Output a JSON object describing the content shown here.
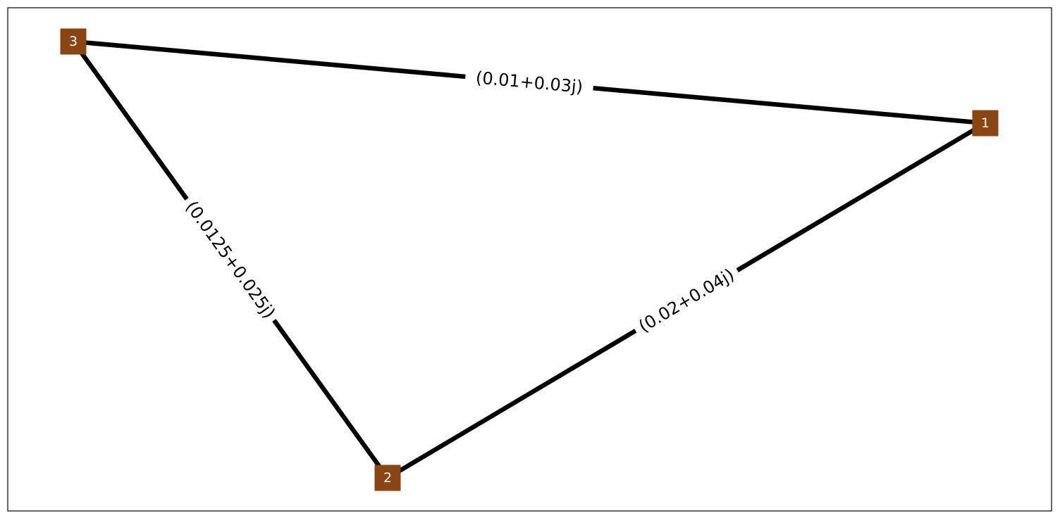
{
  "graph": {
    "nodes": [
      {
        "id": "1",
        "label": "1"
      },
      {
        "id": "2",
        "label": "2"
      },
      {
        "id": "3",
        "label": "3"
      }
    ],
    "edges": [
      {
        "id": "e31",
        "source": "3",
        "target": "1",
        "label": "(0.01+0.03j)"
      },
      {
        "id": "e32",
        "source": "3",
        "target": "2",
        "label": "(0.0125+0.025j)"
      },
      {
        "id": "e21",
        "source": "2",
        "target": "1",
        "label": "(0.02+0.04j)"
      }
    ]
  },
  "colors": {
    "node_fill": "#8B4513",
    "node_text": "#ffffff",
    "edge": "#000000",
    "frame": "#000000",
    "background": "#ffffff"
  }
}
